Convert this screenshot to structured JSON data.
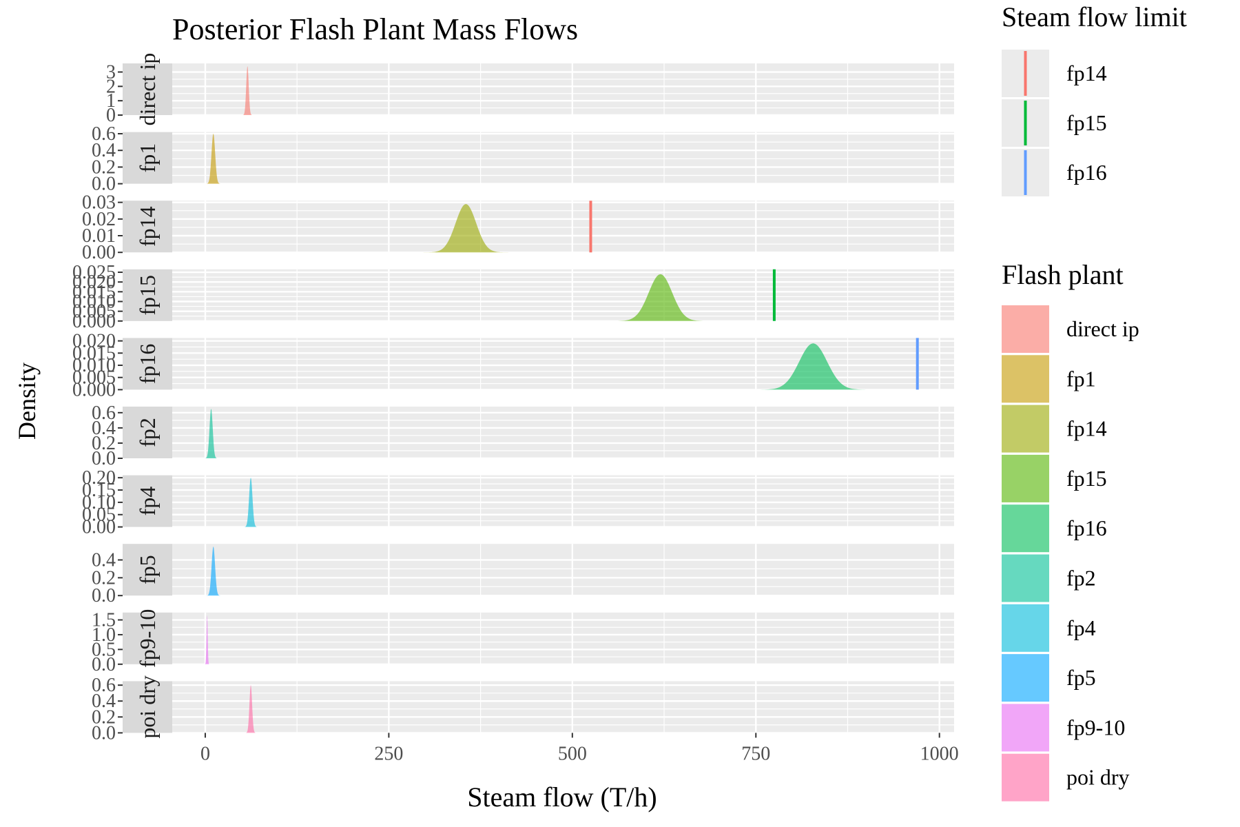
{
  "chart_data": {
    "type": "area",
    "title": "Posterior Flash Plant Mass Flows",
    "xlabel": "Steam flow (T/h)",
    "ylabel": "Density",
    "xlim": [
      -45,
      1020
    ],
    "x_ticks": [
      0,
      250,
      500,
      750,
      1000
    ],
    "x_tick_labels": [
      "0",
      "250",
      "500",
      "750",
      "1000"
    ],
    "grid": true,
    "facets": [
      {
        "label": "direct ip",
        "color": "#F8766D",
        "ylim": [
          0,
          3.6
        ],
        "y_ticks": [
          0,
          1,
          2,
          3
        ],
        "y_tick_labels": [
          "0",
          "1",
          "2",
          "3"
        ],
        "density": {
          "mean": 57.5,
          "sd": 1.7,
          "peak": 3.4
        }
      },
      {
        "label": "fp1",
        "color": "#C49A00",
        "ylim": [
          0,
          0.62
        ],
        "y_ticks": [
          0,
          0.2,
          0.4,
          0.6
        ],
        "y_tick_labels": [
          "0.0",
          "0.2",
          "0.4",
          "0.6"
        ],
        "density": {
          "mean": 11,
          "sd": 2.5,
          "peak": 0.6
        }
      },
      {
        "label": "fp14",
        "color": "#99A800",
        "ylim": [
          0,
          0.031
        ],
        "y_ticks": [
          0,
          0.01,
          0.02,
          0.03
        ],
        "y_tick_labels": [
          "0.00",
          "0.01",
          "0.02",
          "0.03"
        ],
        "density": {
          "mean": 355,
          "sd": 14,
          "peak": 0.029
        },
        "limit": 525
      },
      {
        "label": "fp15",
        "color": "#53B400",
        "ylim": [
          0,
          0.0265
        ],
        "y_ticks": [
          0,
          0.005,
          0.01,
          0.015,
          0.02,
          0.025
        ],
        "y_tick_labels": [
          "0.000",
          "0.005",
          "0.010",
          "0.015",
          "0.020",
          "0.025"
        ],
        "density": {
          "mean": 620,
          "sd": 16,
          "peak": 0.024
        },
        "limit": 775
      },
      {
        "label": "fp16",
        "color": "#00BC56",
        "ylim": [
          0,
          0.0212
        ],
        "y_ticks": [
          0,
          0.005,
          0.01,
          0.015,
          0.02
        ],
        "y_tick_labels": [
          "0.000",
          "0.005",
          "0.010",
          "0.015",
          "0.020"
        ],
        "density": {
          "mean": 828,
          "sd": 19,
          "peak": 0.019
        },
        "limit": 970
      },
      {
        "label": "fp2",
        "color": "#00C094",
        "ylim": [
          0,
          0.68
        ],
        "y_ticks": [
          0,
          0.2,
          0.4,
          0.6
        ],
        "y_tick_labels": [
          "0.0",
          "0.2",
          "0.4",
          "0.6"
        ],
        "density": {
          "mean": 8,
          "sd": 2.2,
          "peak": 0.65
        }
      },
      {
        "label": "fp4",
        "color": "#00BBDA",
        "ylim": [
          0,
          0.21
        ],
        "y_ticks": [
          0,
          0.05,
          0.1,
          0.15,
          0.2
        ],
        "y_tick_labels": [
          "0.00",
          "0.05",
          "0.10",
          "0.15",
          "0.20"
        ],
        "density": {
          "mean": 62,
          "sd": 2.3,
          "peak": 0.2
        }
      },
      {
        "label": "fp5",
        "color": "#00A5FF",
        "ylim": [
          0,
          0.58
        ],
        "y_ticks": [
          0,
          0.2,
          0.4
        ],
        "y_tick_labels": [
          "0.0",
          "0.2",
          "0.4"
        ],
        "density": {
          "mean": 11,
          "sd": 2.4,
          "peak": 0.55
        }
      },
      {
        "label": "fp9-10",
        "color": "#E76BF3",
        "ylim": [
          0,
          1.75
        ],
        "y_ticks": [
          0,
          0.5,
          1,
          1.5
        ],
        "y_tick_labels": [
          "0.0",
          "0.5",
          "1.0",
          "1.5"
        ],
        "density": {
          "mean": 2.5,
          "sd": 0.8,
          "peak": 1.65
        }
      },
      {
        "label": "poi dry",
        "color": "#FF67A4",
        "ylim": [
          0,
          0.65
        ],
        "y_ticks": [
          0,
          0.2,
          0.4,
          0.6
        ],
        "y_tick_labels": [
          "0.0",
          "0.2",
          "0.4",
          "0.6"
        ],
        "density": {
          "mean": 62,
          "sd": 1.8,
          "peak": 0.6
        }
      }
    ],
    "legends": [
      {
        "title": "Steam flow limit",
        "entries": [
          {
            "label": "fp14",
            "color": "#F8766D"
          },
          {
            "label": "fp15",
            "color": "#00BA38"
          },
          {
            "label": "fp16",
            "color": "#619CFF"
          }
        ]
      },
      {
        "title": "Flash plant",
        "entries": [
          {
            "label": "direct ip",
            "color": "#F8766D"
          },
          {
            "label": "fp1",
            "color": "#C49A00"
          },
          {
            "label": "fp14",
            "color": "#99A800"
          },
          {
            "label": "fp15",
            "color": "#53B400"
          },
          {
            "label": "fp16",
            "color": "#00BC56"
          },
          {
            "label": "fp2",
            "color": "#00C094"
          },
          {
            "label": "fp4",
            "color": "#00BBDA"
          },
          {
            "label": "fp5",
            "color": "#00A5FF"
          },
          {
            "label": "fp9-10",
            "color": "#E76BF3"
          },
          {
            "label": "poi dry",
            "color": "#FF67A4"
          }
        ]
      }
    ],
    "legend_position": "right"
  }
}
